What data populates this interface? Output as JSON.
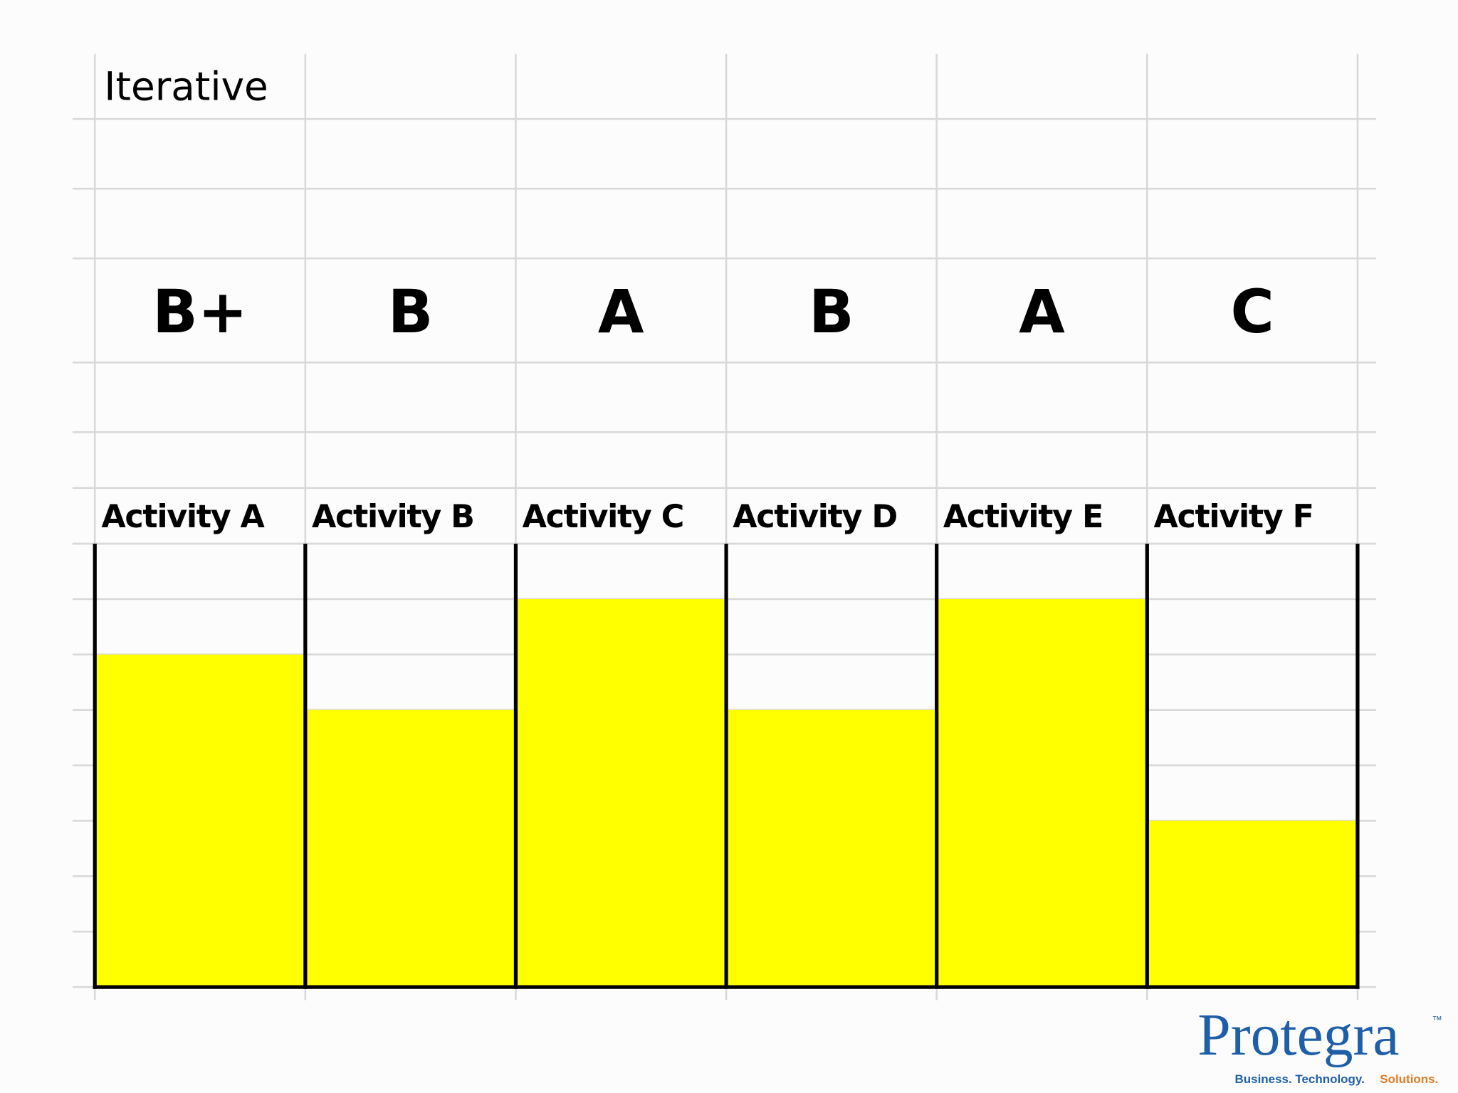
{
  "chart_data": {
    "type": "bar",
    "title": "Iterative",
    "categories": [
      "Activity A",
      "Activity B",
      "Activity C",
      "Activity D",
      "Activity E",
      "Activity F"
    ],
    "grades": [
      "B+",
      "B",
      "A",
      "B",
      "A",
      "C"
    ],
    "values": [
      6,
      5,
      7,
      5,
      7,
      3
    ],
    "color": "#ffff00",
    "ylim": [
      0,
      8
    ]
  },
  "logo": {
    "name": "Protegra",
    "trademark": "™",
    "tagline": "Business. Technology.",
    "tagline_end": "Solutions."
  }
}
